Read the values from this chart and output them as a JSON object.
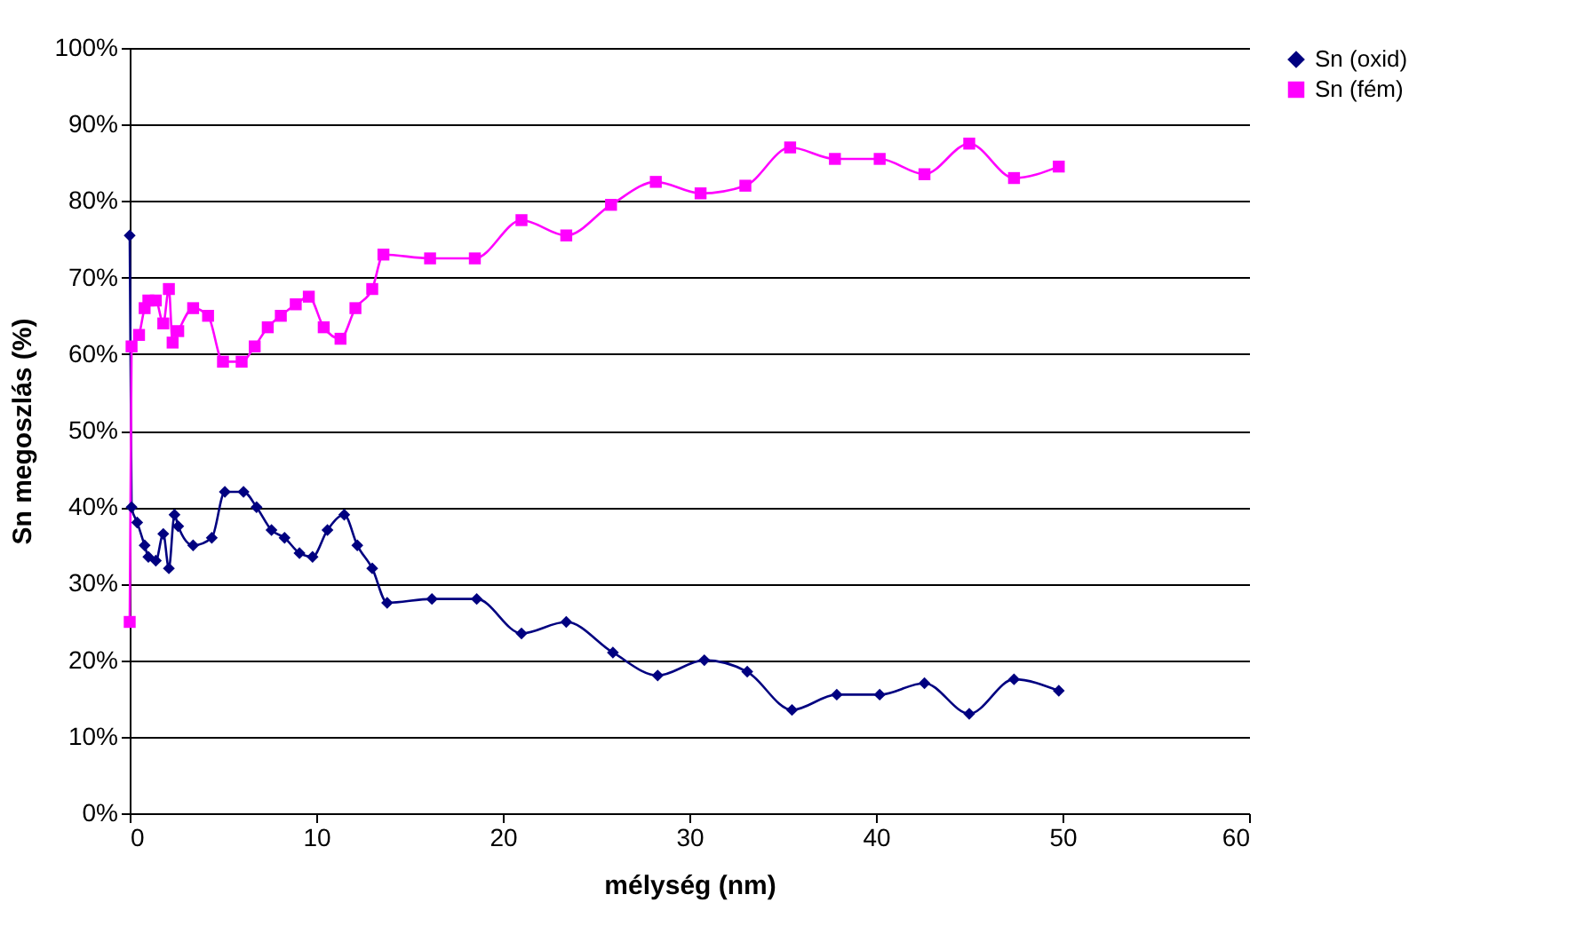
{
  "chart_data": {
    "type": "line",
    "xlabel": "mélység (nm)",
    "ylabel": "Sn megoszlás (%)",
    "xlim": [
      0,
      60
    ],
    "xticks": [
      0,
      10,
      20,
      30,
      40,
      50,
      60
    ],
    "ylim": [
      0,
      100
    ],
    "yticks": [
      {
        "value": 0,
        "label": "0%"
      },
      {
        "value": 10,
        "label": "10%"
      },
      {
        "value": 20,
        "label": "20%"
      },
      {
        "value": 30,
        "label": "30%"
      },
      {
        "value": 40,
        "label": "40%"
      },
      {
        "value": 50,
        "label": "50%"
      },
      {
        "value": 60,
        "label": "60%"
      },
      {
        "value": 70,
        "label": "70%"
      },
      {
        "value": 80,
        "label": "80%"
      },
      {
        "value": 90,
        "label": "90%"
      },
      {
        "value": 100,
        "label": "100%"
      }
    ],
    "grid": "y",
    "legend": "right",
    "series": [
      {
        "name": "Sn (oxid)",
        "color": "#000080",
        "marker": "diamond",
        "x": [
          0,
          0.1,
          0.4,
          0.8,
          1.0,
          1.4,
          1.8,
          2.1,
          2.4,
          2.6,
          3.4,
          4.4,
          5.1,
          6.1,
          6.8,
          7.6,
          8.3,
          9.1,
          9.8,
          10.6,
          11.5,
          12.2,
          13.0,
          13.8,
          16.2,
          18.6,
          21.0,
          23.4,
          25.9,
          28.3,
          30.8,
          33.1,
          35.5,
          37.9,
          40.2,
          42.6,
          45.0,
          47.4,
          49.8
        ],
        "values": [
          75.5,
          40,
          38,
          35,
          33.5,
          33,
          36.5,
          32,
          39,
          37.5,
          35,
          36,
          42,
          42,
          40,
          37,
          36,
          34,
          33.5,
          37,
          39,
          35,
          32,
          27.5,
          28,
          28,
          23.5,
          25,
          21,
          18,
          20,
          18.5,
          13.5,
          15.5,
          15.5,
          17,
          13,
          17.5,
          16
        ]
      },
      {
        "name": "Sn (fém)",
        "color": "#ff00ff",
        "marker": "square",
        "x": [
          0,
          0.1,
          0.5,
          0.8,
          1.0,
          1.4,
          1.8,
          2.1,
          2.3,
          2.6,
          3.4,
          4.2,
          5.0,
          6.0,
          6.7,
          7.4,
          8.1,
          8.9,
          9.6,
          10.4,
          11.3,
          12.1,
          13.0,
          13.6,
          16.1,
          18.5,
          21.0,
          23.4,
          25.8,
          28.2,
          30.6,
          33.0,
          35.4,
          37.8,
          40.2,
          42.6,
          45.0,
          47.4,
          49.8
        ],
        "values": [
          25,
          61,
          62.5,
          66,
          67,
          67,
          64,
          68.5,
          61.5,
          63,
          66,
          65,
          59,
          59,
          61,
          63.5,
          65,
          66.5,
          67.5,
          63.5,
          62,
          66,
          68.5,
          73,
          72.5,
          72.5,
          77.5,
          75.5,
          79.5,
          82.5,
          81,
          82,
          87,
          85.5,
          85.5,
          83.5,
          87.5,
          83,
          84.5
        ]
      }
    ]
  }
}
